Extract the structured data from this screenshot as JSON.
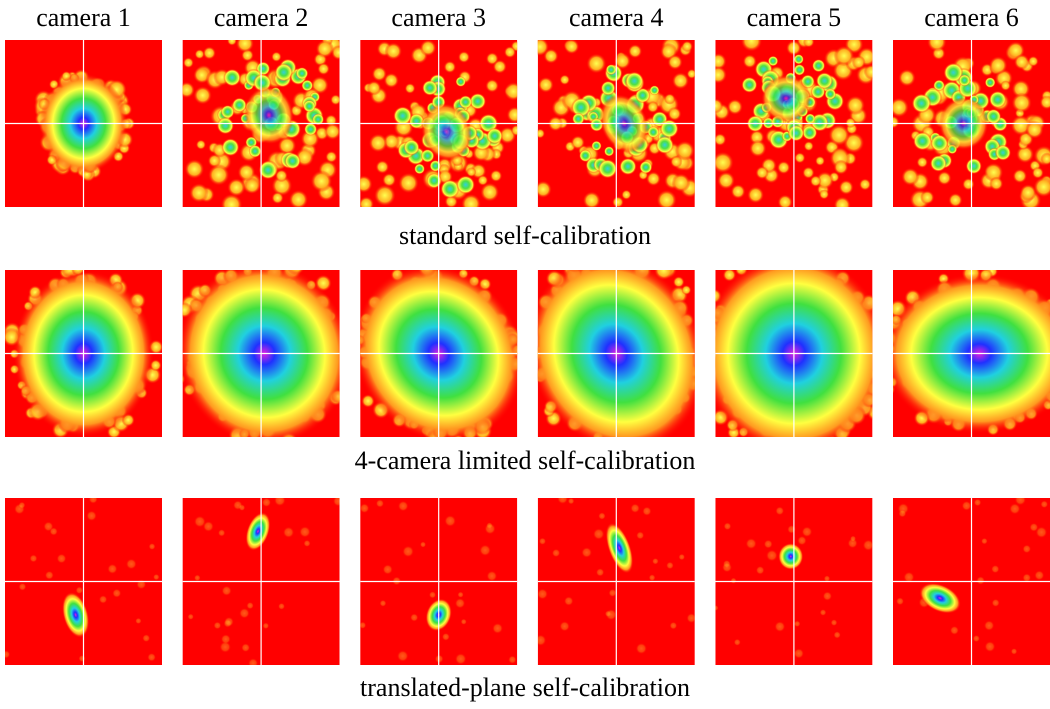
{
  "column_headers": [
    "camera 1",
    "camera 2",
    "camera 3",
    "camera 4",
    "camera 5",
    "camera 6"
  ],
  "rows": [
    {
      "caption": "standard self-calibration"
    },
    {
      "caption": "4-camera limited self-calibration"
    },
    {
      "caption": "translated-plane self-calibration"
    }
  ]
}
